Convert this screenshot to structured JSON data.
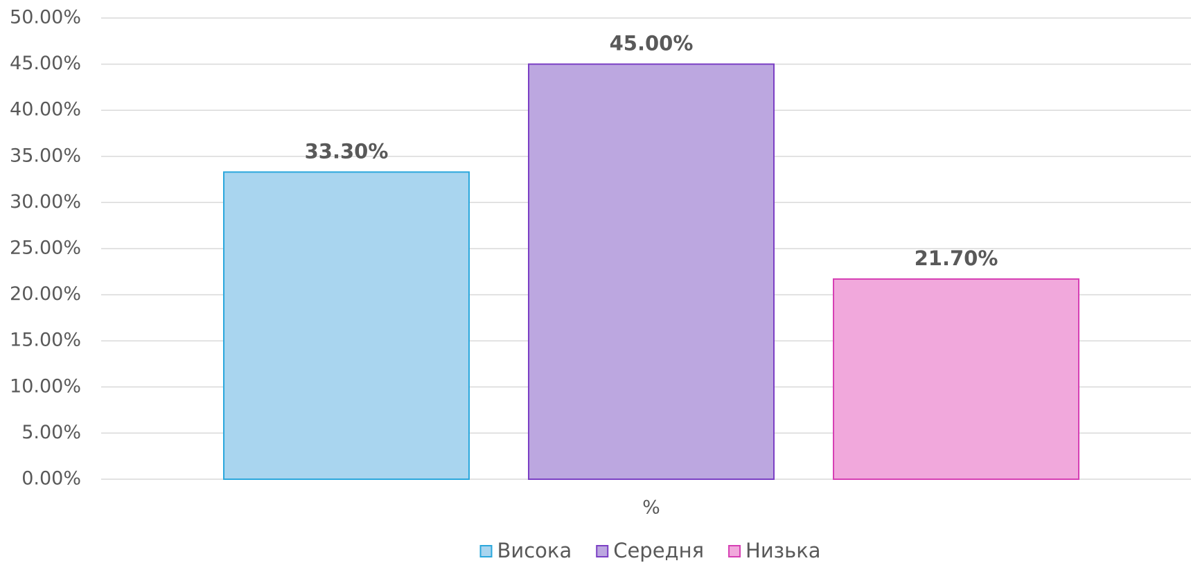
{
  "chart_data": {
    "type": "bar",
    "categories": [
      "%"
    ],
    "series": [
      {
        "name": "Висока",
        "color": "#a9d5ef",
        "edgecolor": "#2aa7dc",
        "values": [
          33.3
        ],
        "value_labels": [
          "33.30%"
        ]
      },
      {
        "name": "Середня",
        "color": "#bca7e0",
        "edgecolor": "#7b3fc4",
        "values": [
          45
        ],
        "value_labels": [
          "45.00%"
        ]
      },
      {
        "name": "Низька",
        "color": "#f1a8dc",
        "edgecolor": "#d63fb4",
        "values": [
          21.7
        ],
        "value_labels": [
          "21.70%"
        ]
      }
    ],
    "ylim": [
      0,
      50
    ],
    "yticks": [
      {
        "value": 0,
        "label": "0.00%"
      },
      {
        "value": 5,
        "label": "5.00%"
      },
      {
        "value": 10,
        "label": "10.00%"
      },
      {
        "value": 15,
        "label": "15.00%"
      },
      {
        "value": 20,
        "label": "20.00%"
      },
      {
        "value": 25,
        "label": "25.00%"
      },
      {
        "value": 30,
        "label": "30.00%"
      },
      {
        "value": 35,
        "label": "35.00%"
      },
      {
        "value": 40,
        "label": "40.00%"
      },
      {
        "value": 45,
        "label": "45.00%"
      },
      {
        "value": 50,
        "label": "50.00%"
      }
    ],
    "grid": true,
    "legend": "bottom"
  }
}
